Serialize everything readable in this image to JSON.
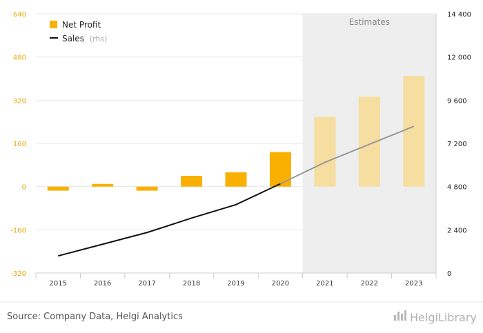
{
  "chart_data": {
    "type": "bar",
    "categories": [
      "2015",
      "2016",
      "2017",
      "2018",
      "2019",
      "2020",
      "2021",
      "2022",
      "2023"
    ],
    "estimate_from_index": 6,
    "series": [
      {
        "name": "Net Profit",
        "type": "bar",
        "axis": "left",
        "color": "#f9b000",
        "estimate_color": "#f6dda0",
        "values": [
          -15,
          10,
          -15,
          40,
          53,
          128,
          258,
          333,
          410
        ]
      },
      {
        "name": "Sales",
        "name_suffix": "(rhs)",
        "type": "line",
        "axis": "right",
        "color": "#111111",
        "estimate_color": "#999999",
        "values": [
          950,
          1600,
          2250,
          3050,
          3800,
          4960,
          6150,
          7150,
          8150
        ]
      }
    ],
    "left_axis": {
      "ylim": [
        -320,
        640
      ],
      "ticks": [
        "-320",
        "-160",
        "0",
        "160",
        "320",
        "480",
        "640"
      ],
      "tick_values": [
        -320,
        -160,
        0,
        160,
        320,
        480,
        640
      ]
    },
    "right_axis": {
      "ylim": [
        0,
        14400
      ],
      "ticks": [
        "0",
        "2 400",
        "4 800",
        "7 200",
        "9 600",
        "12 000",
        "14 400"
      ],
      "tick_values": [
        0,
        2400,
        4800,
        7200,
        9600,
        12000,
        14400
      ]
    },
    "estimates_label": "Estimates",
    "grid": true,
    "legend_position": "top-left"
  },
  "source": "Source: Company Data, Helgi Analytics",
  "brand": "HelgiLibrary"
}
